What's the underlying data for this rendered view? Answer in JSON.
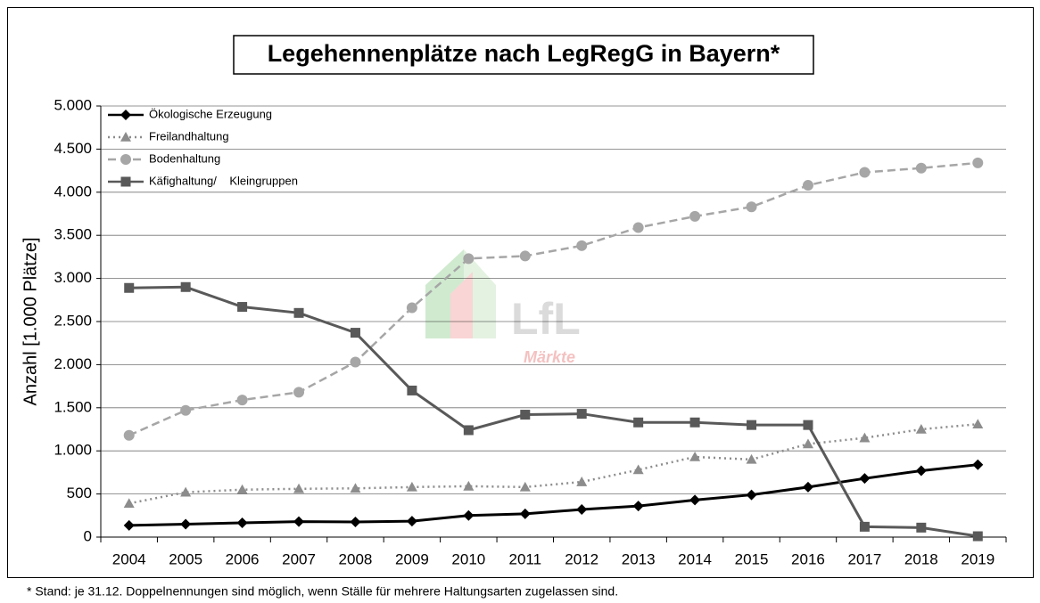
{
  "chart_data": {
    "type": "line",
    "title": "Legehennenplätze nach LegRegG in Bayern*",
    "y_label": "Anzahl [1.000 Plätze]",
    "footnote": "* Stand: je 31.12. Doppelnennungen sind möglich, wenn Ställe für mehrere Haltungsarten zugelassen sind.",
    "watermark": {
      "logo": "LfL",
      "sub": "Märkte"
    },
    "categories": [
      "2004",
      "2005",
      "2006",
      "2007",
      "2008",
      "2009",
      "2010",
      "2011",
      "2012",
      "2013",
      "2014",
      "2015",
      "2016",
      "2017",
      "2018",
      "2019"
    ],
    "series": [
      {
        "name": "Ökologische Erzeugung",
        "color": "#000000",
        "marker": "diamond",
        "line_style": "solid",
        "values": [
          135,
          150,
          165,
          180,
          175,
          185,
          250,
          270,
          320,
          360,
          430,
          490,
          580,
          680,
          770,
          840
        ]
      },
      {
        "name": "Freilandhaltung",
        "color": "#8c8c8c",
        "marker": "triangle",
        "line_style": "dotted",
        "values": [
          390,
          520,
          550,
          560,
          565,
          580,
          590,
          580,
          640,
          780,
          930,
          900,
          1080,
          1150,
          1250,
          1310
        ]
      },
      {
        "name": "Bodenhaltung",
        "color": "#a6a6a6",
        "marker": "circle",
        "line_style": "dashed",
        "values": [
          1180,
          1470,
          1590,
          1680,
          2030,
          2660,
          3230,
          3260,
          3380,
          3590,
          3720,
          3830,
          4080,
          4230,
          4280,
          4340
        ]
      },
      {
        "name": "Käfighaltung/    Kleingruppen",
        "color": "#595959",
        "marker": "square",
        "line_style": "solid",
        "values": [
          2890,
          2900,
          2670,
          2600,
          2370,
          1700,
          1240,
          1420,
          1430,
          1330,
          1330,
          1300,
          1300,
          120,
          110,
          10
        ]
      }
    ],
    "ylim": [
      0,
      5000
    ],
    "yticks": [
      0,
      500,
      {
        "value": 1000,
        "label": "1.000"
      },
      {
        "value": 1500,
        "label": "1.500"
      },
      {
        "value": 2000,
        "label": "2.000"
      },
      {
        "value": 2500,
        "label": "2.500"
      },
      {
        "value": 3000,
        "label": "3.000"
      },
      {
        "value": 3500,
        "label": "3.500"
      },
      {
        "value": 4000,
        "label": "4.000"
      },
      {
        "value": 4500,
        "label": "4.500"
      },
      {
        "value": 5000,
        "label": "5.000"
      }
    ],
    "grid": true,
    "legend": "upper left"
  }
}
